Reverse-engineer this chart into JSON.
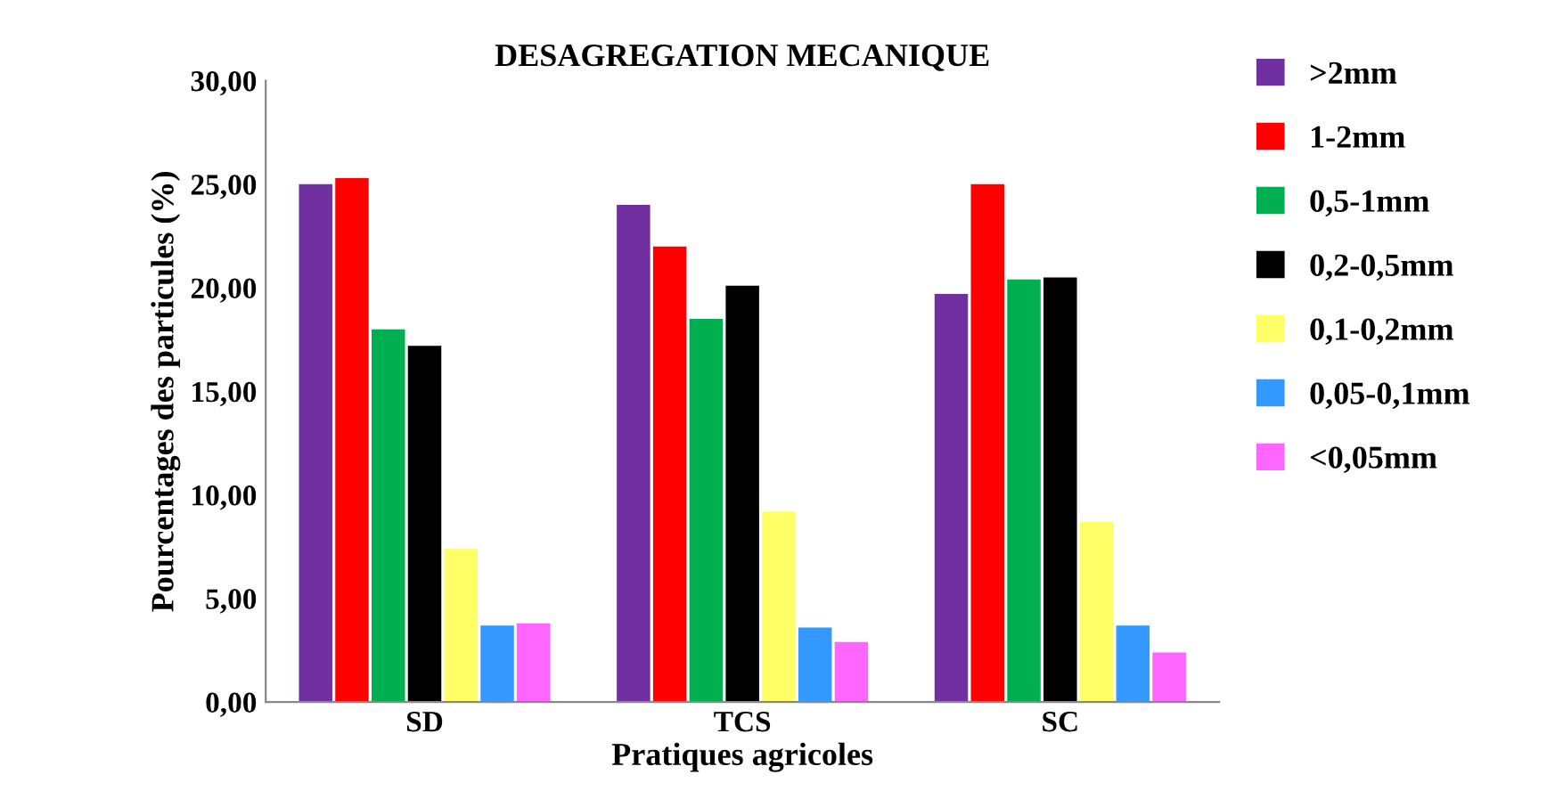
{
  "chart_data": {
    "type": "bar",
    "title": "DESAGREGATION MECANIQUE",
    "xlabel": "Pratiques agricoles",
    "ylabel": "Pourcentages des particules (%)",
    "categories": [
      "SD",
      "TCS",
      "SC"
    ],
    "series": [
      {
        "name": ">2mm",
        "color": "#7030a0",
        "values": [
          25.0,
          24.0,
          19.7
        ]
      },
      {
        "name": "1-2mm",
        "color": "#ff0000",
        "values": [
          25.3,
          22.0,
          25.0
        ]
      },
      {
        "name": "0,5-1mm",
        "color": "#00b050",
        "values": [
          18.0,
          18.5,
          20.4
        ]
      },
      {
        "name": "0,2-0,5mm",
        "color": "#000000",
        "values": [
          17.2,
          20.1,
          20.5
        ]
      },
      {
        "name": "0,1-0,2mm",
        "color": "#ffff66",
        "values": [
          7.4,
          9.2,
          8.7
        ]
      },
      {
        "name": "0,05-0,1mm",
        "color": "#3399ff",
        "values": [
          3.7,
          3.6,
          3.7
        ]
      },
      {
        "name": "<0,05mm",
        "color": "#ff66ff",
        "values": [
          3.8,
          2.9,
          2.4
        ]
      }
    ],
    "ylim": [
      0,
      30
    ],
    "yticks": [
      {
        "value": 0,
        "label": "0,00"
      },
      {
        "value": 5,
        "label": "5,00"
      },
      {
        "value": 10,
        "label": "10,00"
      },
      {
        "value": 15,
        "label": "15,00"
      },
      {
        "value": 20,
        "label": "20,00"
      },
      {
        "value": 25,
        "label": "25,00"
      },
      {
        "value": 30,
        "label": "30,00"
      }
    ],
    "grid": false,
    "legend": "right"
  }
}
